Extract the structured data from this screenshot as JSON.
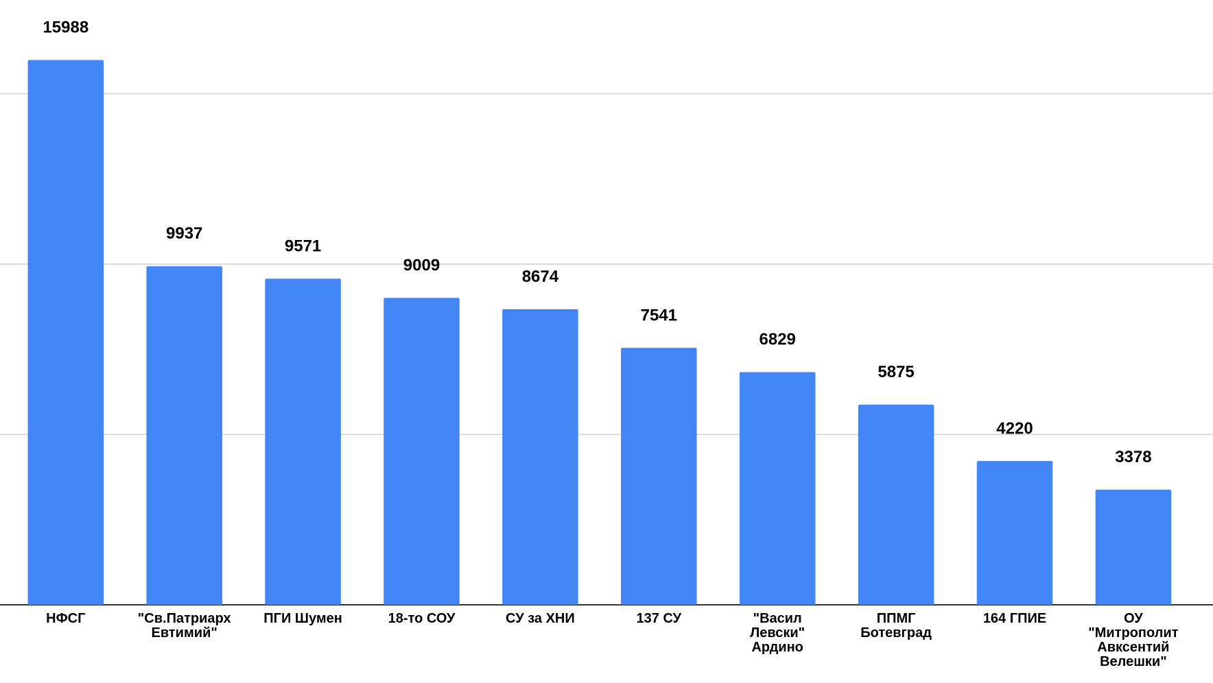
{
  "chart_data": {
    "type": "bar",
    "categories": [
      "НФСГ",
      "\"Св.Патриарх\nЕвтимий\"",
      "ПГИ Шумен",
      "18-то СОУ",
      "СУ за ХНИ",
      "137 СУ",
      "\"Васил\nЛевски\"\nАрдино",
      "ППМГ\nБотевград",
      "164 ГПИЕ",
      "ОУ\n\"Митрополит\nАвксентий\nВелешки\""
    ],
    "values": [
      15988,
      9937,
      9571,
      9009,
      8674,
      7541,
      6829,
      5875,
      4220,
      3378
    ],
    "color": "#4285f4",
    "ylim": [
      0,
      17750
    ],
    "yticks": [
      0,
      5000,
      10000,
      15000
    ],
    "grid": true
  }
}
